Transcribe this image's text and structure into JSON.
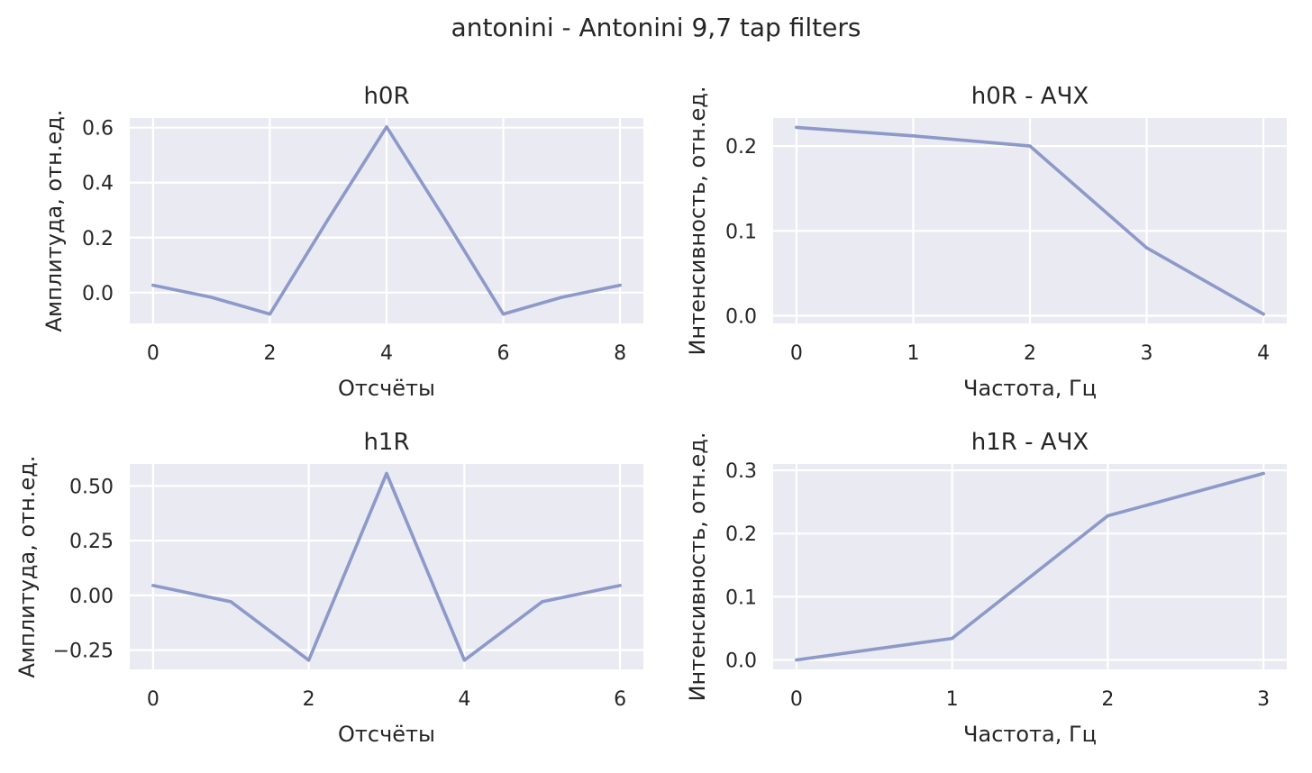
{
  "figure": {
    "suptitle": "antonini - Antonini 9,7 tap filters"
  },
  "style": {
    "line_color": "#8c99c9",
    "panel_bg": "#eaeaf2",
    "grid_color": "#ffffff",
    "text_color": "#262626"
  },
  "chart_data": [
    {
      "type": "line",
      "title": "h0R",
      "xlabel": "Отсчёты",
      "ylabel": "Амплитуда, отн.ед.",
      "x": [
        0,
        1,
        2,
        3,
        4,
        5,
        6,
        7,
        8
      ],
      "y": [
        0.027,
        -0.017,
        -0.078,
        0.267,
        0.603,
        0.267,
        -0.078,
        -0.017,
        0.027
      ],
      "xlim": [
        -0.4,
        8.4
      ],
      "ylim": [
        -0.112,
        0.635
      ],
      "xticks": [
        0,
        2,
        4,
        6,
        8
      ],
      "xtick_labels": [
        "0",
        "2",
        "4",
        "6",
        "8"
      ],
      "yticks": [
        0.0,
        0.2,
        0.4,
        0.6
      ],
      "ytick_labels": [
        "0.0",
        "0.2",
        "0.4",
        "0.6"
      ],
      "grid": true
    },
    {
      "type": "line",
      "title": "h0R - АЧХ",
      "xlabel": "Частота, Гц",
      "ylabel": "Интенсивность, отн.ед.",
      "x": [
        0,
        1,
        2,
        3,
        4
      ],
      "y": [
        0.222,
        0.212,
        0.2,
        0.08,
        0.002
      ],
      "xlim": [
        -0.2,
        4.2
      ],
      "ylim": [
        -0.009,
        0.233
      ],
      "xticks": [
        0,
        1,
        2,
        3,
        4
      ],
      "xtick_labels": [
        "0",
        "1",
        "2",
        "3",
        "4"
      ],
      "yticks": [
        0.0,
        0.1,
        0.2
      ],
      "ytick_labels": [
        "0.0",
        "0.1",
        "0.2"
      ],
      "grid": true
    },
    {
      "type": "line",
      "title": "h1R",
      "xlabel": "Отсчёты",
      "ylabel": "Амплитуда, отн.ед.",
      "x": [
        0,
        1,
        2,
        3,
        4,
        5,
        6
      ],
      "y": [
        0.045,
        -0.029,
        -0.296,
        0.557,
        -0.296,
        -0.029,
        0.045
      ],
      "xlim": [
        -0.3,
        6.3
      ],
      "ylim": [
        -0.338,
        0.6
      ],
      "xticks": [
        0,
        2,
        4,
        6
      ],
      "xtick_labels": [
        "0",
        "2",
        "4",
        "6"
      ],
      "yticks": [
        -0.25,
        0.0,
        0.25,
        0.5
      ],
      "ytick_labels": [
        "−0.25",
        "0.00",
        "0.25",
        "0.50"
      ],
      "grid": true
    },
    {
      "type": "line",
      "title": "h1R - АЧХ",
      "xlabel": "Частота, Гц",
      "ylabel": "Интенсивность, отн.ед.",
      "x": [
        0,
        1,
        2,
        3
      ],
      "y": [
        0.0,
        0.034,
        0.228,
        0.295
      ],
      "xlim": [
        -0.15,
        3.15
      ],
      "ylim": [
        -0.015,
        0.31
      ],
      "xticks": [
        0,
        1,
        2,
        3
      ],
      "xtick_labels": [
        "0",
        "1",
        "2",
        "3"
      ],
      "yticks": [
        0.0,
        0.1,
        0.2,
        0.3
      ],
      "ytick_labels": [
        "0.0",
        "0.1",
        "0.2",
        "0.3"
      ],
      "grid": true
    }
  ]
}
